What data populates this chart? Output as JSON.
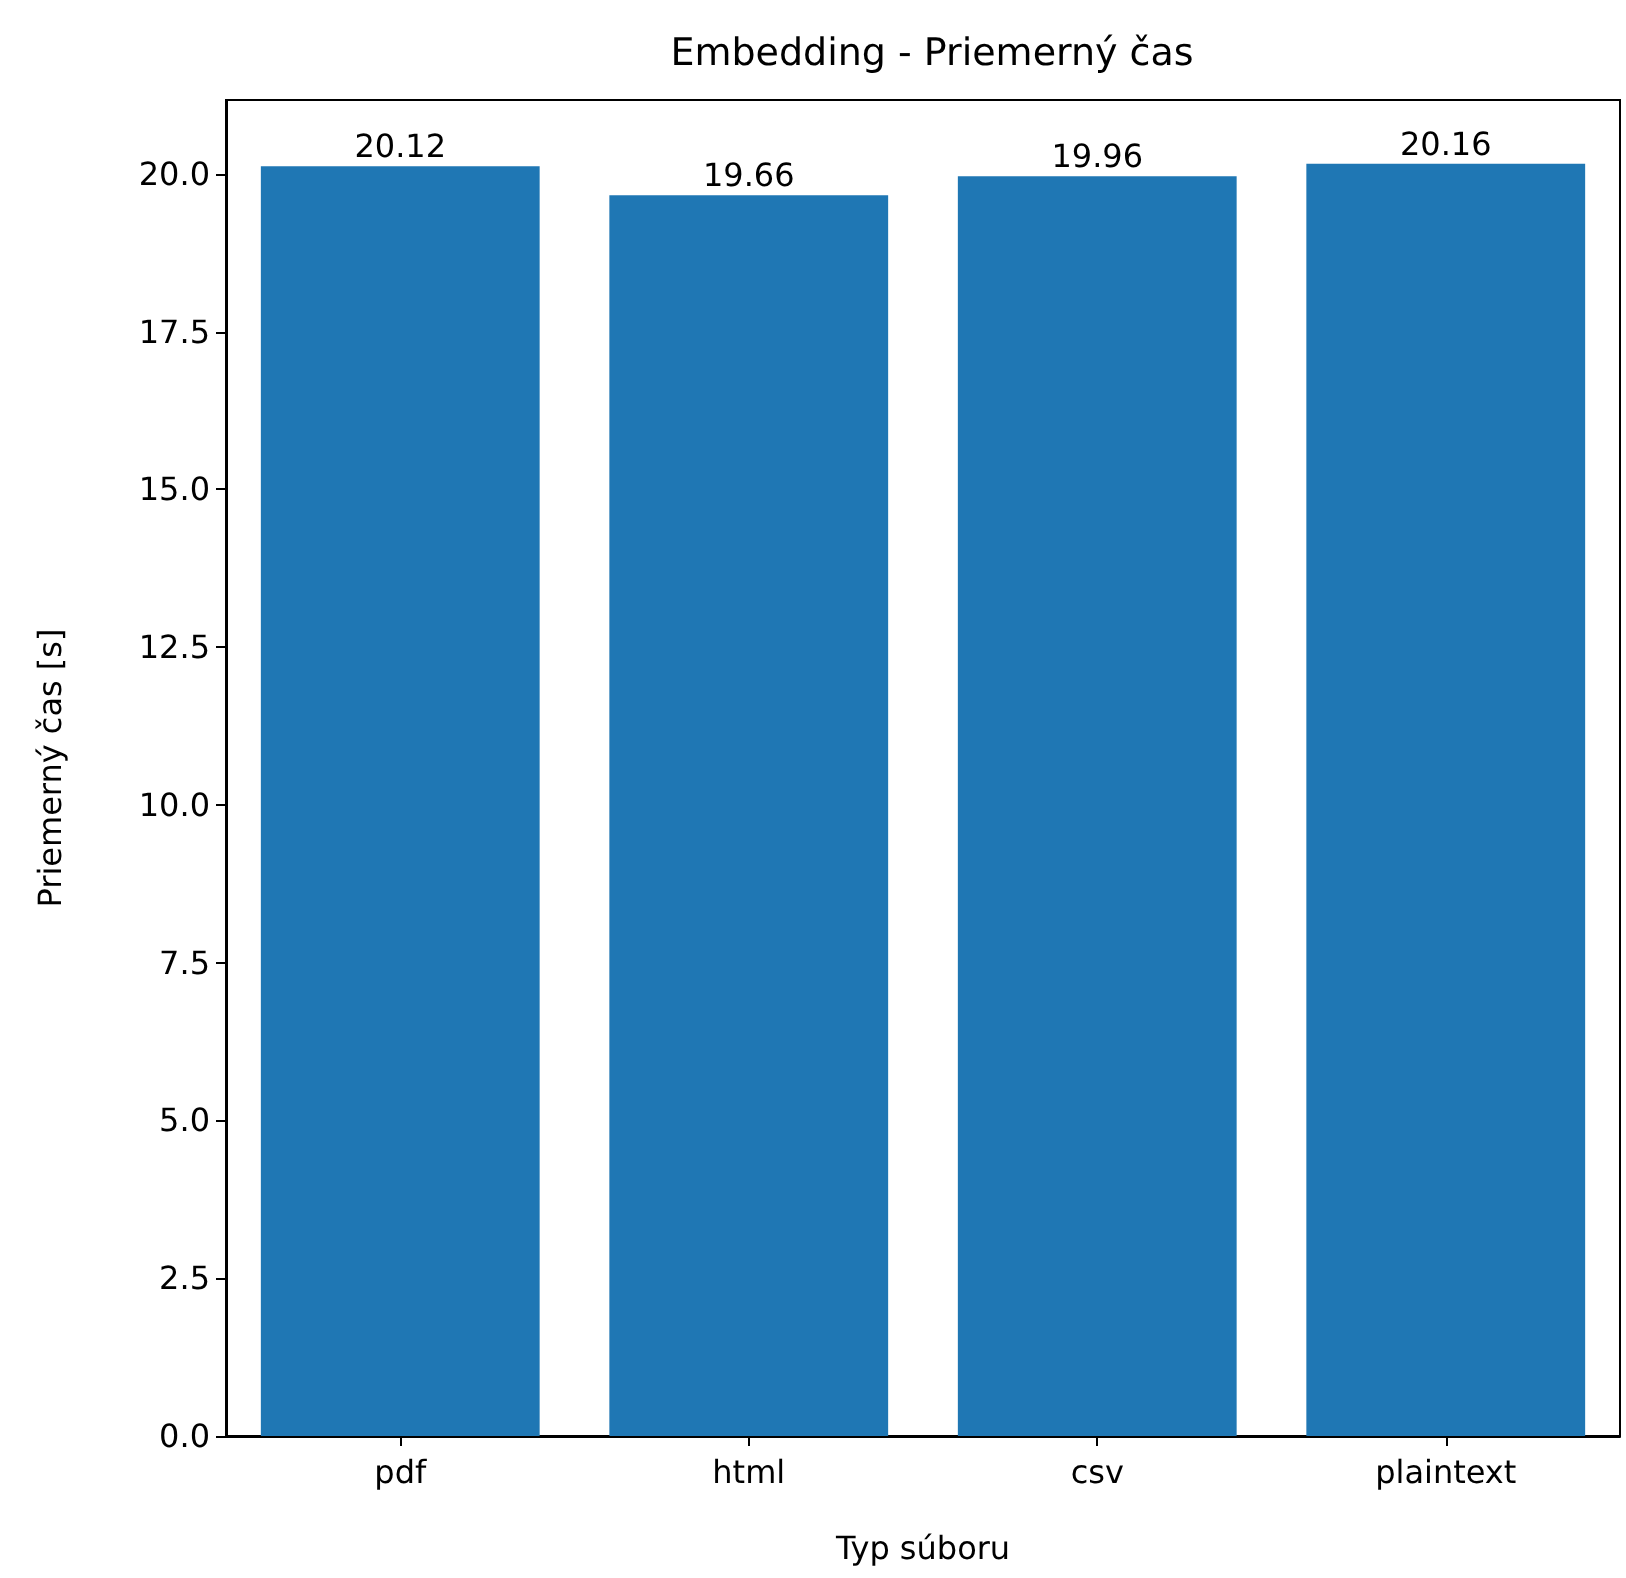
{
  "chart_data": {
    "type": "bar",
    "title": "Embedding - Priemerný čas",
    "xlabel": "Typ súboru",
    "ylabel": "Priemerný čas [s]",
    "categories": [
      "pdf",
      "html",
      "csv",
      "plaintext"
    ],
    "values": [
      20.12,
      19.66,
      19.96,
      20.16
    ],
    "color": "#1f77b4",
    "ylim": [
      0,
      21.17
    ],
    "yticks": [
      {
        "value": 0,
        "label": "0.0"
      },
      2.5,
      {
        "value": 5,
        "label": "5.0"
      },
      7.5,
      {
        "value": 10,
        "label": "10.0"
      },
      12.5,
      {
        "value": 15,
        "label": "15.0"
      },
      17.5,
      {
        "value": 20,
        "label": "20.0"
      }
    ],
    "data_labels": true,
    "grid": false
  }
}
